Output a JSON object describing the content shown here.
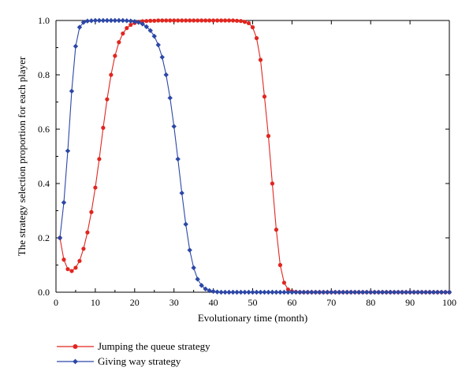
{
  "chart_data": {
    "type": "line",
    "title": "",
    "xlabel": "Evolutionary time (month)",
    "ylabel": "The strategy selection proportion for each player",
    "xlim": [
      0,
      100
    ],
    "ylim": [
      0,
      1.0
    ],
    "xticks": [
      0,
      10,
      20,
      30,
      40,
      50,
      60,
      70,
      80,
      90,
      100
    ],
    "xtick_labels": [
      "0",
      "10",
      "20",
      "30",
      "40",
      "50",
      "60",
      "70",
      "80",
      "90",
      "100"
    ],
    "yticks": [
      0,
      0.2,
      0.4,
      0.6,
      0.8,
      1.0
    ],
    "ytick_labels": [
      "0.0",
      "0.2",
      "0.4",
      "0.6",
      "0.8",
      "1.0"
    ],
    "grid": false,
    "legend_position": "bottom-left",
    "x": [
      1,
      2,
      3,
      4,
      5,
      6,
      7,
      8,
      9,
      10,
      11,
      12,
      13,
      14,
      15,
      16,
      17,
      18,
      19,
      20,
      21,
      22,
      23,
      24,
      25,
      26,
      27,
      28,
      29,
      30,
      31,
      32,
      33,
      34,
      35,
      36,
      37,
      38,
      39,
      40,
      41,
      42,
      43,
      44,
      45,
      46,
      47,
      48,
      49,
      50,
      51,
      52,
      53,
      54,
      55,
      56,
      57,
      58,
      59,
      60,
      61,
      62,
      63,
      64,
      65,
      66,
      67,
      68,
      69,
      70,
      71,
      72,
      73,
      74,
      75,
      76,
      77,
      78,
      79,
      80,
      81,
      82,
      83,
      84,
      85,
      86,
      87,
      88,
      89,
      90,
      91,
      92,
      93,
      94,
      95,
      96,
      97,
      98,
      99,
      100
    ],
    "series": [
      {
        "name": "Jumping the queue strategy",
        "color": "#e0261f",
        "marker": "circle",
        "values": [
          0.2,
          0.12,
          0.085,
          0.078,
          0.09,
          0.115,
          0.16,
          0.22,
          0.295,
          0.385,
          0.49,
          0.605,
          0.71,
          0.8,
          0.87,
          0.92,
          0.952,
          0.972,
          0.984,
          0.991,
          0.995,
          0.997,
          0.998,
          0.999,
          0.999,
          1,
          1,
          1,
          1,
          1,
          1,
          1,
          1,
          1,
          1,
          1,
          1,
          1,
          1,
          1,
          1,
          1,
          1,
          1,
          1,
          0.999,
          0.998,
          0.995,
          0.99,
          0.975,
          0.935,
          0.855,
          0.72,
          0.575,
          0.4,
          0.23,
          0.1,
          0.035,
          0.01,
          0.003,
          0.001,
          0,
          0,
          0,
          0,
          0,
          0,
          0,
          0,
          0,
          0,
          0,
          0,
          0,
          0,
          0,
          0,
          0,
          0,
          0,
          0,
          0,
          0,
          0,
          0,
          0,
          0,
          0,
          0,
          0,
          0,
          0,
          0,
          0,
          0,
          0,
          0,
          0,
          0,
          0
        ]
      },
      {
        "name": "Giving way strategy",
        "color": "#2c47a6",
        "marker": "diamond",
        "values": [
          0.2,
          0.33,
          0.52,
          0.74,
          0.905,
          0.975,
          0.993,
          0.998,
          0.999,
          1,
          1,
          1,
          1,
          1,
          1,
          1,
          1,
          0.999,
          0.998,
          0.996,
          0.993,
          0.987,
          0.977,
          0.963,
          0.942,
          0.91,
          0.865,
          0.8,
          0.715,
          0.61,
          0.49,
          0.365,
          0.25,
          0.155,
          0.09,
          0.048,
          0.025,
          0.012,
          0.006,
          0.003,
          0.001,
          0,
          0,
          0,
          0,
          0,
          0,
          0,
          0,
          0,
          0,
          0,
          0,
          0,
          0,
          0,
          0,
          0,
          0,
          0,
          0,
          0,
          0,
          0,
          0,
          0,
          0,
          0,
          0,
          0,
          0,
          0,
          0,
          0,
          0,
          0,
          0,
          0,
          0,
          0,
          0,
          0,
          0,
          0,
          0,
          0,
          0,
          0,
          0,
          0,
          0,
          0,
          0,
          0,
          0,
          0,
          0,
          0,
          0,
          0
        ]
      }
    ]
  }
}
